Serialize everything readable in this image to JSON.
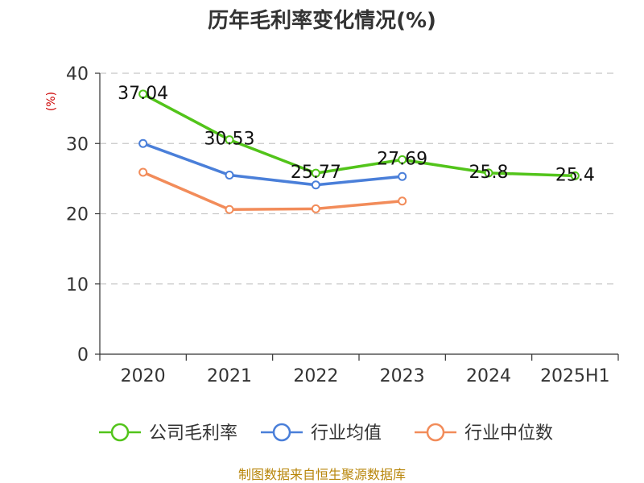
{
  "chart_data": {
    "type": "line",
    "title": "历年毛利率变化情况(%)",
    "ylabel": "(%)",
    "xlabel": "",
    "categories": [
      "2020",
      "2021",
      "2022",
      "2023",
      "2024",
      "2025H1"
    ],
    "ylim": [
      0,
      40
    ],
    "yticks": [
      0,
      10,
      20,
      30,
      40
    ],
    "grid": true,
    "legend_position": "bottom",
    "series": [
      {
        "name": "公司毛利率",
        "color": "#52c41a",
        "show_labels": true,
        "values": [
          37.04,
          30.53,
          25.77,
          27.69,
          25.8,
          25.4
        ],
        "labels": [
          "37.04",
          "30.53",
          "25.77",
          "27.69",
          "25.8",
          "25.4"
        ]
      },
      {
        "name": "行业均值",
        "color": "#4a7fd9",
        "show_labels": false,
        "values": [
          30.0,
          25.5,
          24.1,
          25.3,
          null,
          null
        ]
      },
      {
        "name": "行业中位数",
        "color": "#f28c5a",
        "show_labels": false,
        "values": [
          25.9,
          20.6,
          20.7,
          21.8,
          null,
          null
        ]
      }
    ]
  },
  "footer": {
    "source": "制图数据来自恒生聚源数据库"
  }
}
